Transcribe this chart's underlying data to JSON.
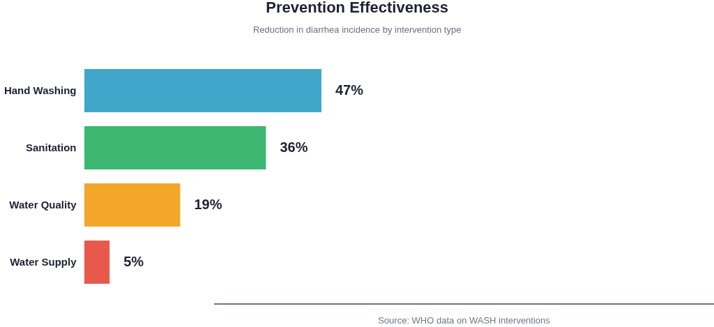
{
  "chart_data": {
    "type": "bar",
    "orientation": "horizontal",
    "title": "Prevention Effectiveness",
    "subtitle": "Reduction in diarrhea incidence by intervention type",
    "categories": [
      "Hand Washing",
      "Sanitation",
      "Water Quality",
      "Water Supply"
    ],
    "values": [
      47,
      36,
      19,
      5
    ],
    "colors": [
      "#41a7ca",
      "#3cb772",
      "#f2a72b",
      "#e8594b"
    ],
    "value_labels": [
      "47%",
      "36%",
      "19%",
      "5%"
    ],
    "annotations": [
      "Source: WHO data on WASH interventions"
    ]
  }
}
